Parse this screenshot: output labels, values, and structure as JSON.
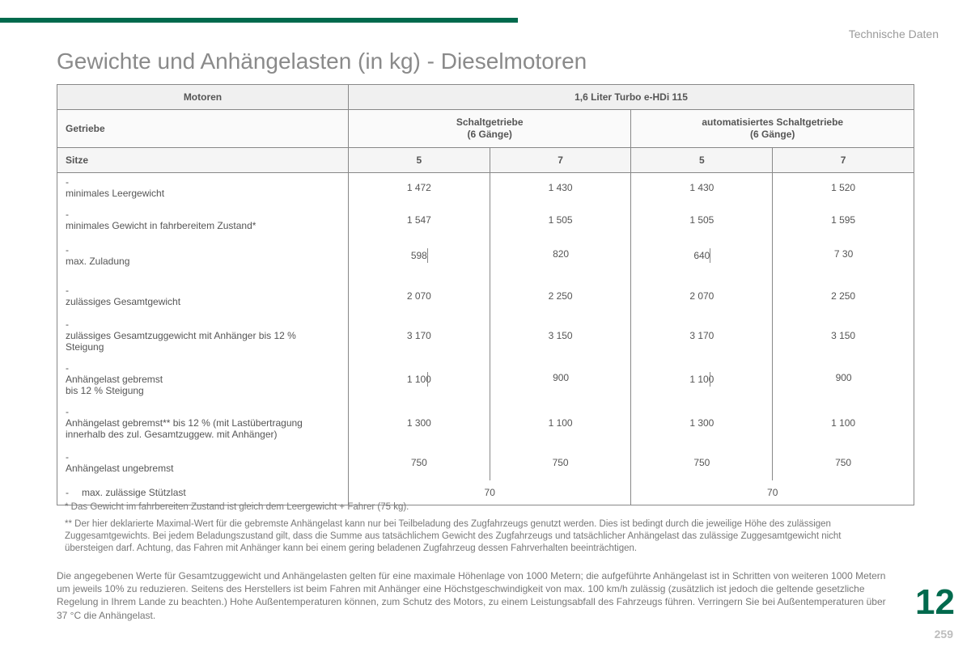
{
  "colors": {
    "accent": "#006a4d",
    "border": "#888888",
    "text": "#666666",
    "muted": "#9a9a9a"
  },
  "header_label": "Technische Daten",
  "title": "Gewichte und Anhängelasten (in kg) - Dieselmotoren",
  "chapter": "12",
  "page_number": "259",
  "table": {
    "motor_label": "Motoren",
    "motor_value": "1,6 Liter Turbo e-HDi 115",
    "gearbox_label": "Getriebe",
    "gearbox_a": "Schaltgetriebe",
    "gearbox_a_sub": "(6 Gänge)",
    "gearbox_b": "automatisiertes Schaltgetriebe",
    "gearbox_b_sub": "(6 Gänge)",
    "seats_label": "Sitze",
    "seats": [
      "5",
      "7",
      "5",
      "7"
    ],
    "rows": [
      {
        "label": "minimales Leergewicht",
        "v": [
          "1 472",
          "1 430",
          "1 430",
          "1 520"
        ],
        "tight": true
      },
      {
        "label": "minimales Gewicht in fahrbereitem Zustand*",
        "v": [
          "1 547",
          "1 505",
          "1 505",
          "1 595"
        ]
      },
      {
        "label": "max. Zuladung",
        "v": [
          "598",
          "820",
          "640",
          "7 30"
        ],
        "tick": true
      },
      {
        "label": "zulässiges Gesamtgewicht",
        "v": [
          "2 070",
          "2 250",
          "2 070",
          "2 250"
        ],
        "loose": true
      },
      {
        "label": "zulässiges Gesamtzuggewicht mit Anhänger bis 12 % Steigung",
        "v": [
          "3 170",
          "3 150",
          "3 170",
          "3 150"
        ],
        "multi": true
      },
      {
        "label": "Anhängelast gebremst\nbis 12 % Steigung",
        "v": [
          "1 100",
          "900",
          "1 100",
          "900"
        ],
        "multi": true,
        "tick": true
      },
      {
        "label": "Anhängelast gebremst** bis 12 % (mit Lastübertragung innerhalb des zul. Gesamtzuggew. mit Anhänger)",
        "v": [
          "1 300",
          "1 100",
          "1 300",
          "1 100"
        ],
        "multi": true
      },
      {
        "label": "Anhängelast ungebremst",
        "v": [
          "750",
          "750",
          "750",
          "750"
        ]
      }
    ],
    "last_row": {
      "label": "max. zulässige Stützlast",
      "v": [
        "70",
        "70"
      ]
    }
  },
  "footnote1": "* Das Gewicht im fahrbereiten Zustand ist gleich dem Leergewicht + Fahrer (75 kg).",
  "footnote2": "** Der hier deklarierte Maximal-Wert für die gebremste Anhängelast kann nur bei Teilbeladung des Zugfahrzeugs genutzt werden. Dies ist bedingt durch die jeweilige Höhe des zulässigen Zuggesamtgewichts. Bei jedem Beladungszustand gilt, dass die Summe aus tatsächlichem Gewicht des Zugfahrzeugs und tatsächlicher Anhängelast das zulässige Zuggesamtgewicht nicht übersteigen darf. Achtung, das Fahren mit Anhänger kann bei einem gering beladenen Zugfahrzeug dessen Fahrverhalten beeinträchtigen.",
  "paragraph": "Die angegebenen Werte für Gesamtzuggewicht und Anhängelasten gelten für eine maximale Höhenlage von 1000 Metern; die aufgeführte Anhängelast ist in Schritten von weiteren 1000 Metern um jeweils 10% zu reduzieren. Seitens des Herstellers ist beim Fahren mit Anhänger eine Höchstgeschwindigkeit von max. 100 km/h zulässig (zusätzlich ist jedoch die geltende gesetzliche Regelung in Ihrem Lande zu beachten.) Hohe Außentemperaturen können, zum Schutz des Motors, zu einem Leistungsabfall des Fahrzeugs führen. Verringern Sie bei Außentemperaturen über 37 °C die Anhängelast."
}
